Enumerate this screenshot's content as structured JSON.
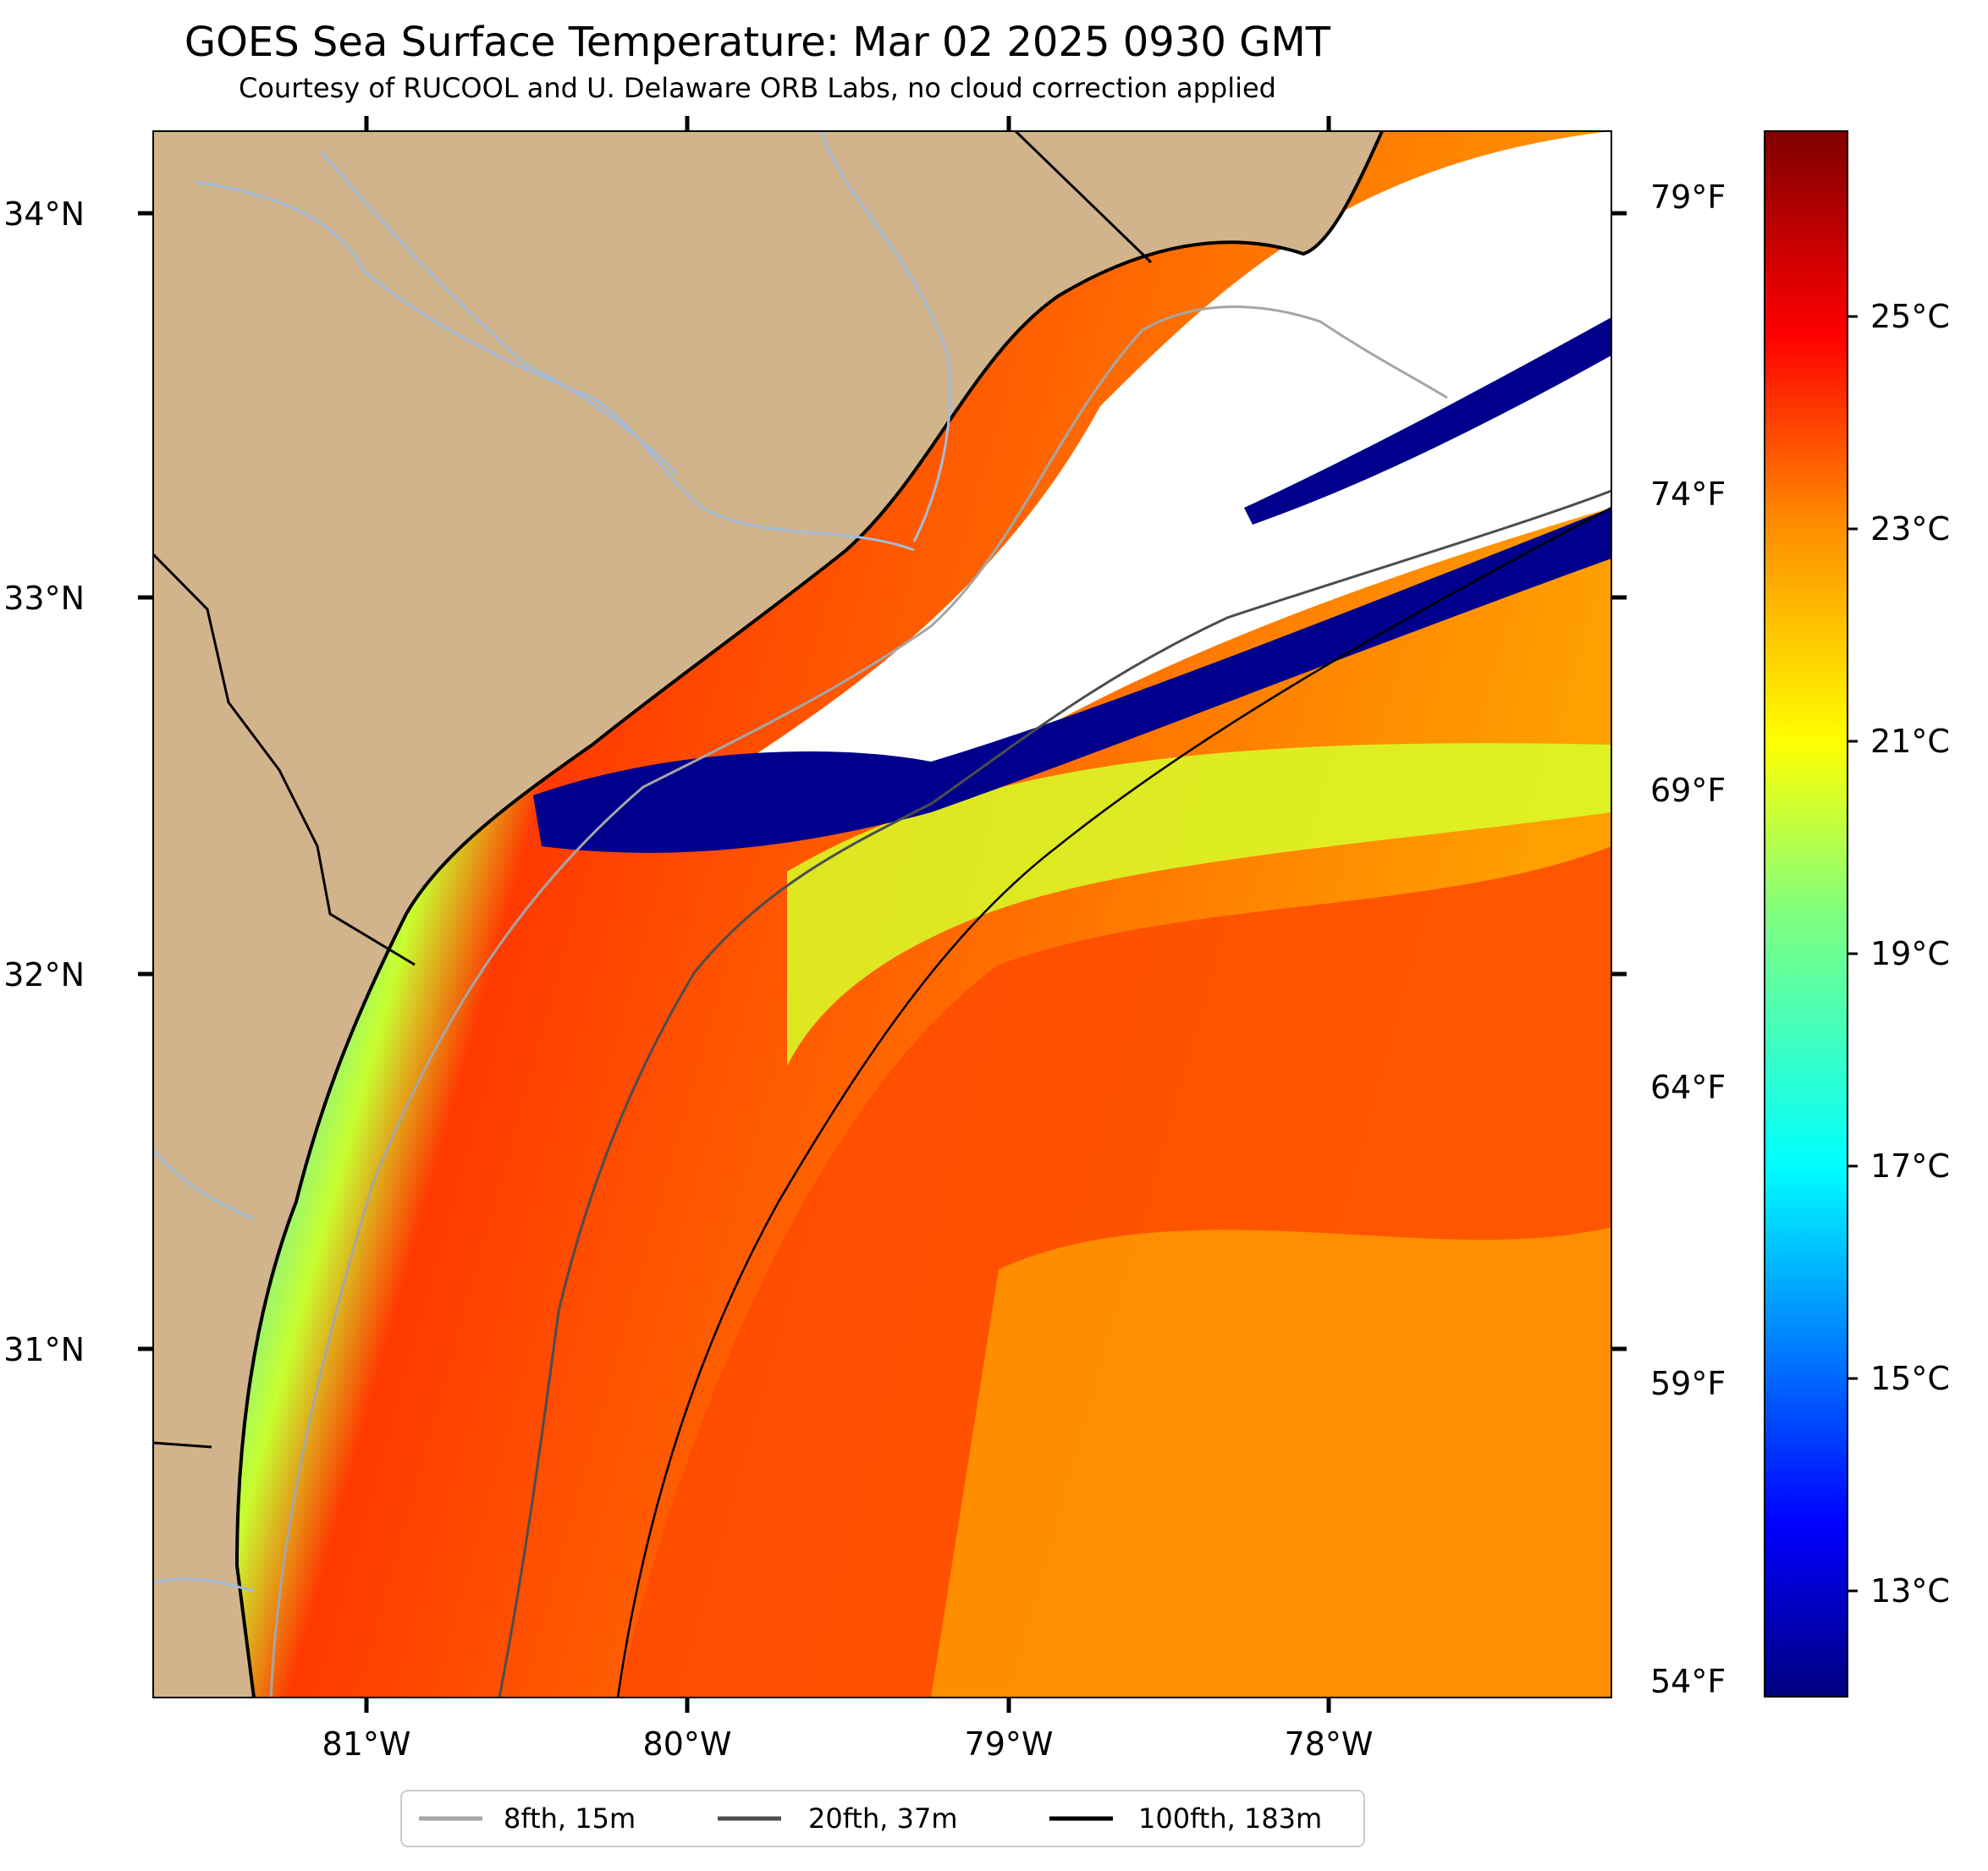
{
  "title": "GOES Sea Surface Temperature: Mar 02 2025 0930 GMT",
  "subtitle": "Courtesy of RUCOOL and U. Delaware ORB Labs, no cloud correction applied",
  "axes": {
    "lat_labels": [
      "34°N",
      "33°N",
      "32°N",
      "31°N"
    ],
    "lon_labels": [
      "81°W",
      "80°W",
      "79°W",
      "78°W"
    ],
    "fahrenheit_labels": [
      "79°F",
      "74°F",
      "69°F",
      "64°F",
      "59°F",
      "54°F"
    ]
  },
  "colorbar": {
    "unit": "°C",
    "labels": [
      "25°C",
      "23°C",
      "21°C",
      "19°C",
      "17°C",
      "15°C",
      "13°C"
    ],
    "range_c": [
      12.2,
      26.6
    ]
  },
  "legend": {
    "items": [
      {
        "label": "8fth, 15m",
        "color": "#a6a6a6"
      },
      {
        "label": "20fth, 37m",
        "color": "#4d4d4d"
      },
      {
        "label": "100fth, 183m",
        "color": "#000000"
      }
    ]
  },
  "colors": {
    "land": "#d2b48c",
    "rivers": "#a3bcd9",
    "cloud": "#ffffff"
  }
}
